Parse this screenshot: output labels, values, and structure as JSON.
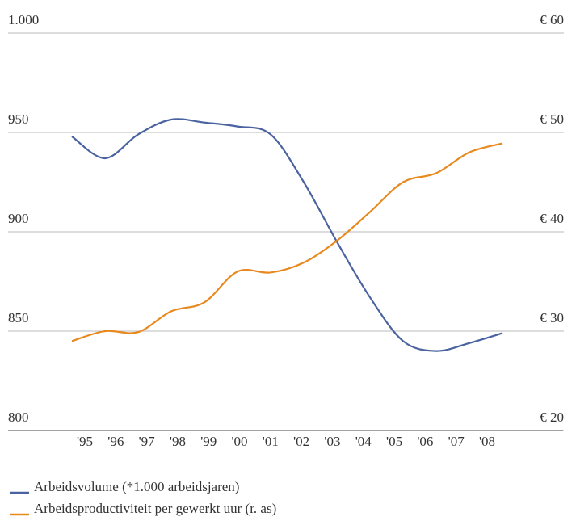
{
  "chart_data": {
    "type": "line",
    "categories": [
      "'95",
      "'96",
      "'97",
      "'98",
      "'99",
      "'00",
      "'01",
      "'02",
      "'03",
      "'04",
      "'05",
      "'06",
      "'07",
      "'08"
    ],
    "series": [
      {
        "name": "Arbeidsvolume (*1.000 arbeidsjaren)",
        "color": "#4a63a0",
        "values": [
          948,
          937,
          949,
          956.5,
          955,
          953,
          949,
          925,
          895,
          867,
          845,
          840,
          844,
          849
        ]
      },
      {
        "name": "Arbeidsproductiviteit per gewerkt uur (r. as)",
        "color": "#e8891e",
        "axis": "y2",
        "values": [
          29.0,
          30.0,
          29.9,
          32.0,
          32.9,
          36.0,
          35.9,
          36.9,
          39.1,
          42.0,
          45.0,
          45.9,
          48.0,
          48.9
        ]
      }
    ],
    "ylim": [
      800,
      1000
    ],
    "yticks": [
      800,
      850,
      900,
      950,
      {
        "value": 1000,
        "label": "1.000"
      }
    ],
    "y2lim": [
      20,
      60
    ],
    "y2ticks": [
      {
        "value": 20,
        "label": "€ 20"
      },
      {
        "value": 30,
        "label": "€ 30"
      },
      {
        "value": 40,
        "label": "€ 40"
      },
      {
        "value": 50,
        "label": "€ 50"
      },
      {
        "value": 60,
        "label": "€ 60"
      }
    ],
    "grid": true
  }
}
